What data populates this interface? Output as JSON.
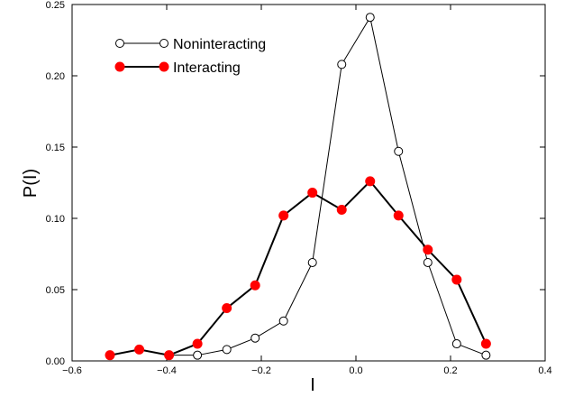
{
  "chart_data": {
    "type": "line",
    "title": "",
    "xlabel": "I",
    "ylabel": "P(I)",
    "xlim": [
      -0.6,
      0.4
    ],
    "ylim": [
      0.0,
      0.25
    ],
    "x_ticks": [
      -0.6,
      -0.4,
      -0.2,
      0.0,
      0.2,
      0.4
    ],
    "x_tick_labels": [
      "−0.6",
      "−0.4",
      "−0.2",
      "0.0",
      "0.2",
      "0.4"
    ],
    "y_ticks": [
      0.0,
      0.05,
      0.1,
      0.15,
      0.2,
      0.25
    ],
    "y_tick_labels": [
      "0.00",
      "0.05",
      "0.10",
      "0.15",
      "0.20",
      "0.25"
    ],
    "grid": false,
    "legend_position": "top-left",
    "series": [
      {
        "name": "Noninteracting",
        "marker": "open-circle",
        "color": "#000000",
        "x": [
          -0.52,
          -0.458,
          -0.395,
          -0.335,
          -0.273,
          -0.213,
          -0.153,
          -0.092,
          -0.03,
          0.03,
          0.09,
          0.152,
          0.213,
          0.275
        ],
        "y": [
          0.004,
          0.008,
          0.004,
          0.004,
          0.008,
          0.016,
          0.028,
          0.069,
          0.208,
          0.241,
          0.147,
          0.069,
          0.012,
          0.004
        ]
      },
      {
        "name": "Interacting",
        "marker": "filled-circle",
        "color": "#ff0000",
        "line_color": "#000000",
        "x": [
          -0.52,
          -0.458,
          -0.395,
          -0.335,
          -0.273,
          -0.213,
          -0.153,
          -0.092,
          -0.03,
          0.03,
          0.09,
          0.152,
          0.213,
          0.275
        ],
        "y": [
          0.004,
          0.008,
          0.004,
          0.012,
          0.037,
          0.053,
          0.102,
          0.118,
          0.106,
          0.126,
          0.102,
          0.078,
          0.057,
          0.012
        ]
      }
    ]
  }
}
